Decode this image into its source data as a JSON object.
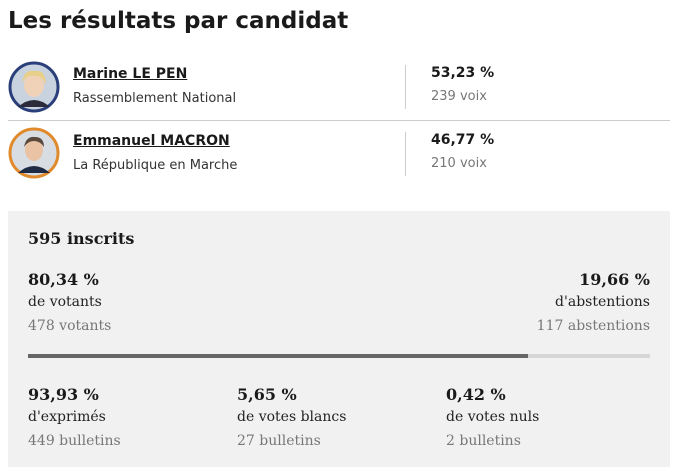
{
  "header": {
    "title": "Les résultats par candidat"
  },
  "candidates": [
    {
      "name": "Marine LE PEN",
      "party": "Rassemblement National",
      "percent": "53,23 %",
      "votes": "239 voix"
    },
    {
      "name": "Emmanuel MACRON",
      "party": "La République en Marche",
      "percent": "46,77 %",
      "votes": "210 voix"
    }
  ],
  "stats": {
    "registered": "595 inscrits",
    "voters": {
      "percent": {
        "value": 80.34,
        "label": "80,34 %"
      },
      "label": "de votants",
      "count": "478 votants"
    },
    "abstentions": {
      "percent": "19,66 %",
      "label": "d'abstentions",
      "count": "117 abstentions"
    },
    "breakdown": [
      {
        "percent": "93,93 %",
        "label": "d'exprimés",
        "count": "449 bulletins"
      },
      {
        "percent": "5,65 %",
        "label": "de votes blancs",
        "count": "27 bulletins"
      },
      {
        "percent": "0,42 %",
        "label": "de votes nuls",
        "count": "2 bulletins"
      }
    ]
  }
}
